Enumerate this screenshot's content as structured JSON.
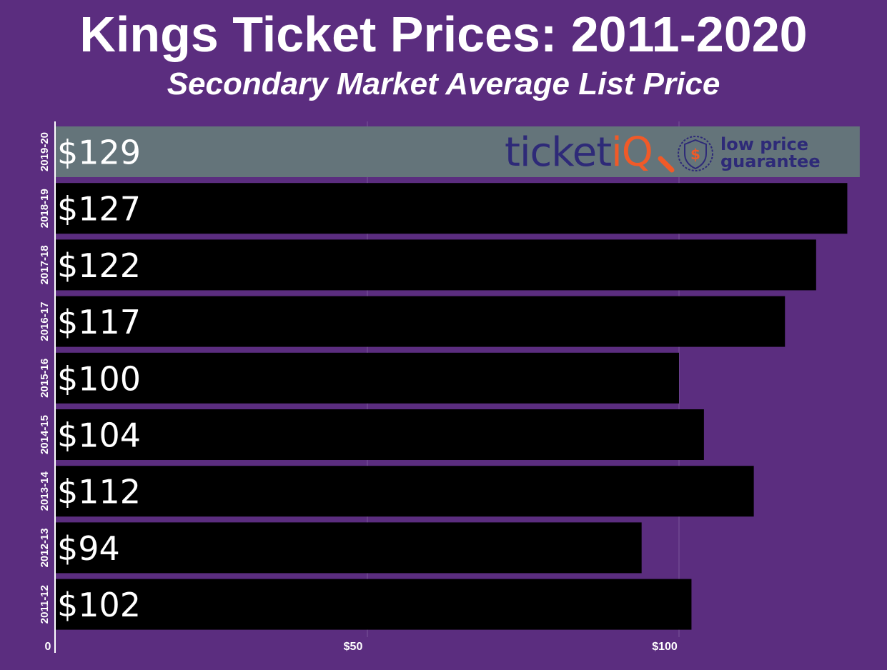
{
  "chart_data": {
    "type": "bar",
    "orientation": "horizontal",
    "title": "Kings Ticket Prices: 2011-2020",
    "subtitle": "Secondary Market Average List Price",
    "categories": [
      "2019-20",
      "2018-19",
      "2017-18",
      "2016-17",
      "2015-16",
      "2014-15",
      "2013-14",
      "2012-13",
      "2011-12"
    ],
    "values": [
      129,
      127,
      122,
      117,
      100,
      104,
      112,
      94,
      102
    ],
    "value_labels": [
      "$129",
      "$127",
      "$122",
      "$117",
      "$100",
      "$104",
      "$112",
      "$94",
      "$102"
    ],
    "x_ticks": [
      0,
      50,
      100
    ],
    "x_tick_labels": [
      "0",
      "$50",
      "$100"
    ],
    "xlim": [
      0,
      130
    ],
    "highlight_category": "2019-20",
    "colors": {
      "background": "#5b2d7f",
      "bar": "#000000",
      "highlight_bar": "#64747a",
      "text": "#ffffff",
      "grid": "#7a559a"
    }
  },
  "logo": {
    "brand_main": "ticket",
    "brand_accent": "iQ",
    "line1": "low price",
    "line2": "guarantee",
    "badge_symbol": "$",
    "icon": "shield-dollar-icon",
    "colors": {
      "brand": "#2e2a78",
      "accent": "#f05a28"
    }
  }
}
